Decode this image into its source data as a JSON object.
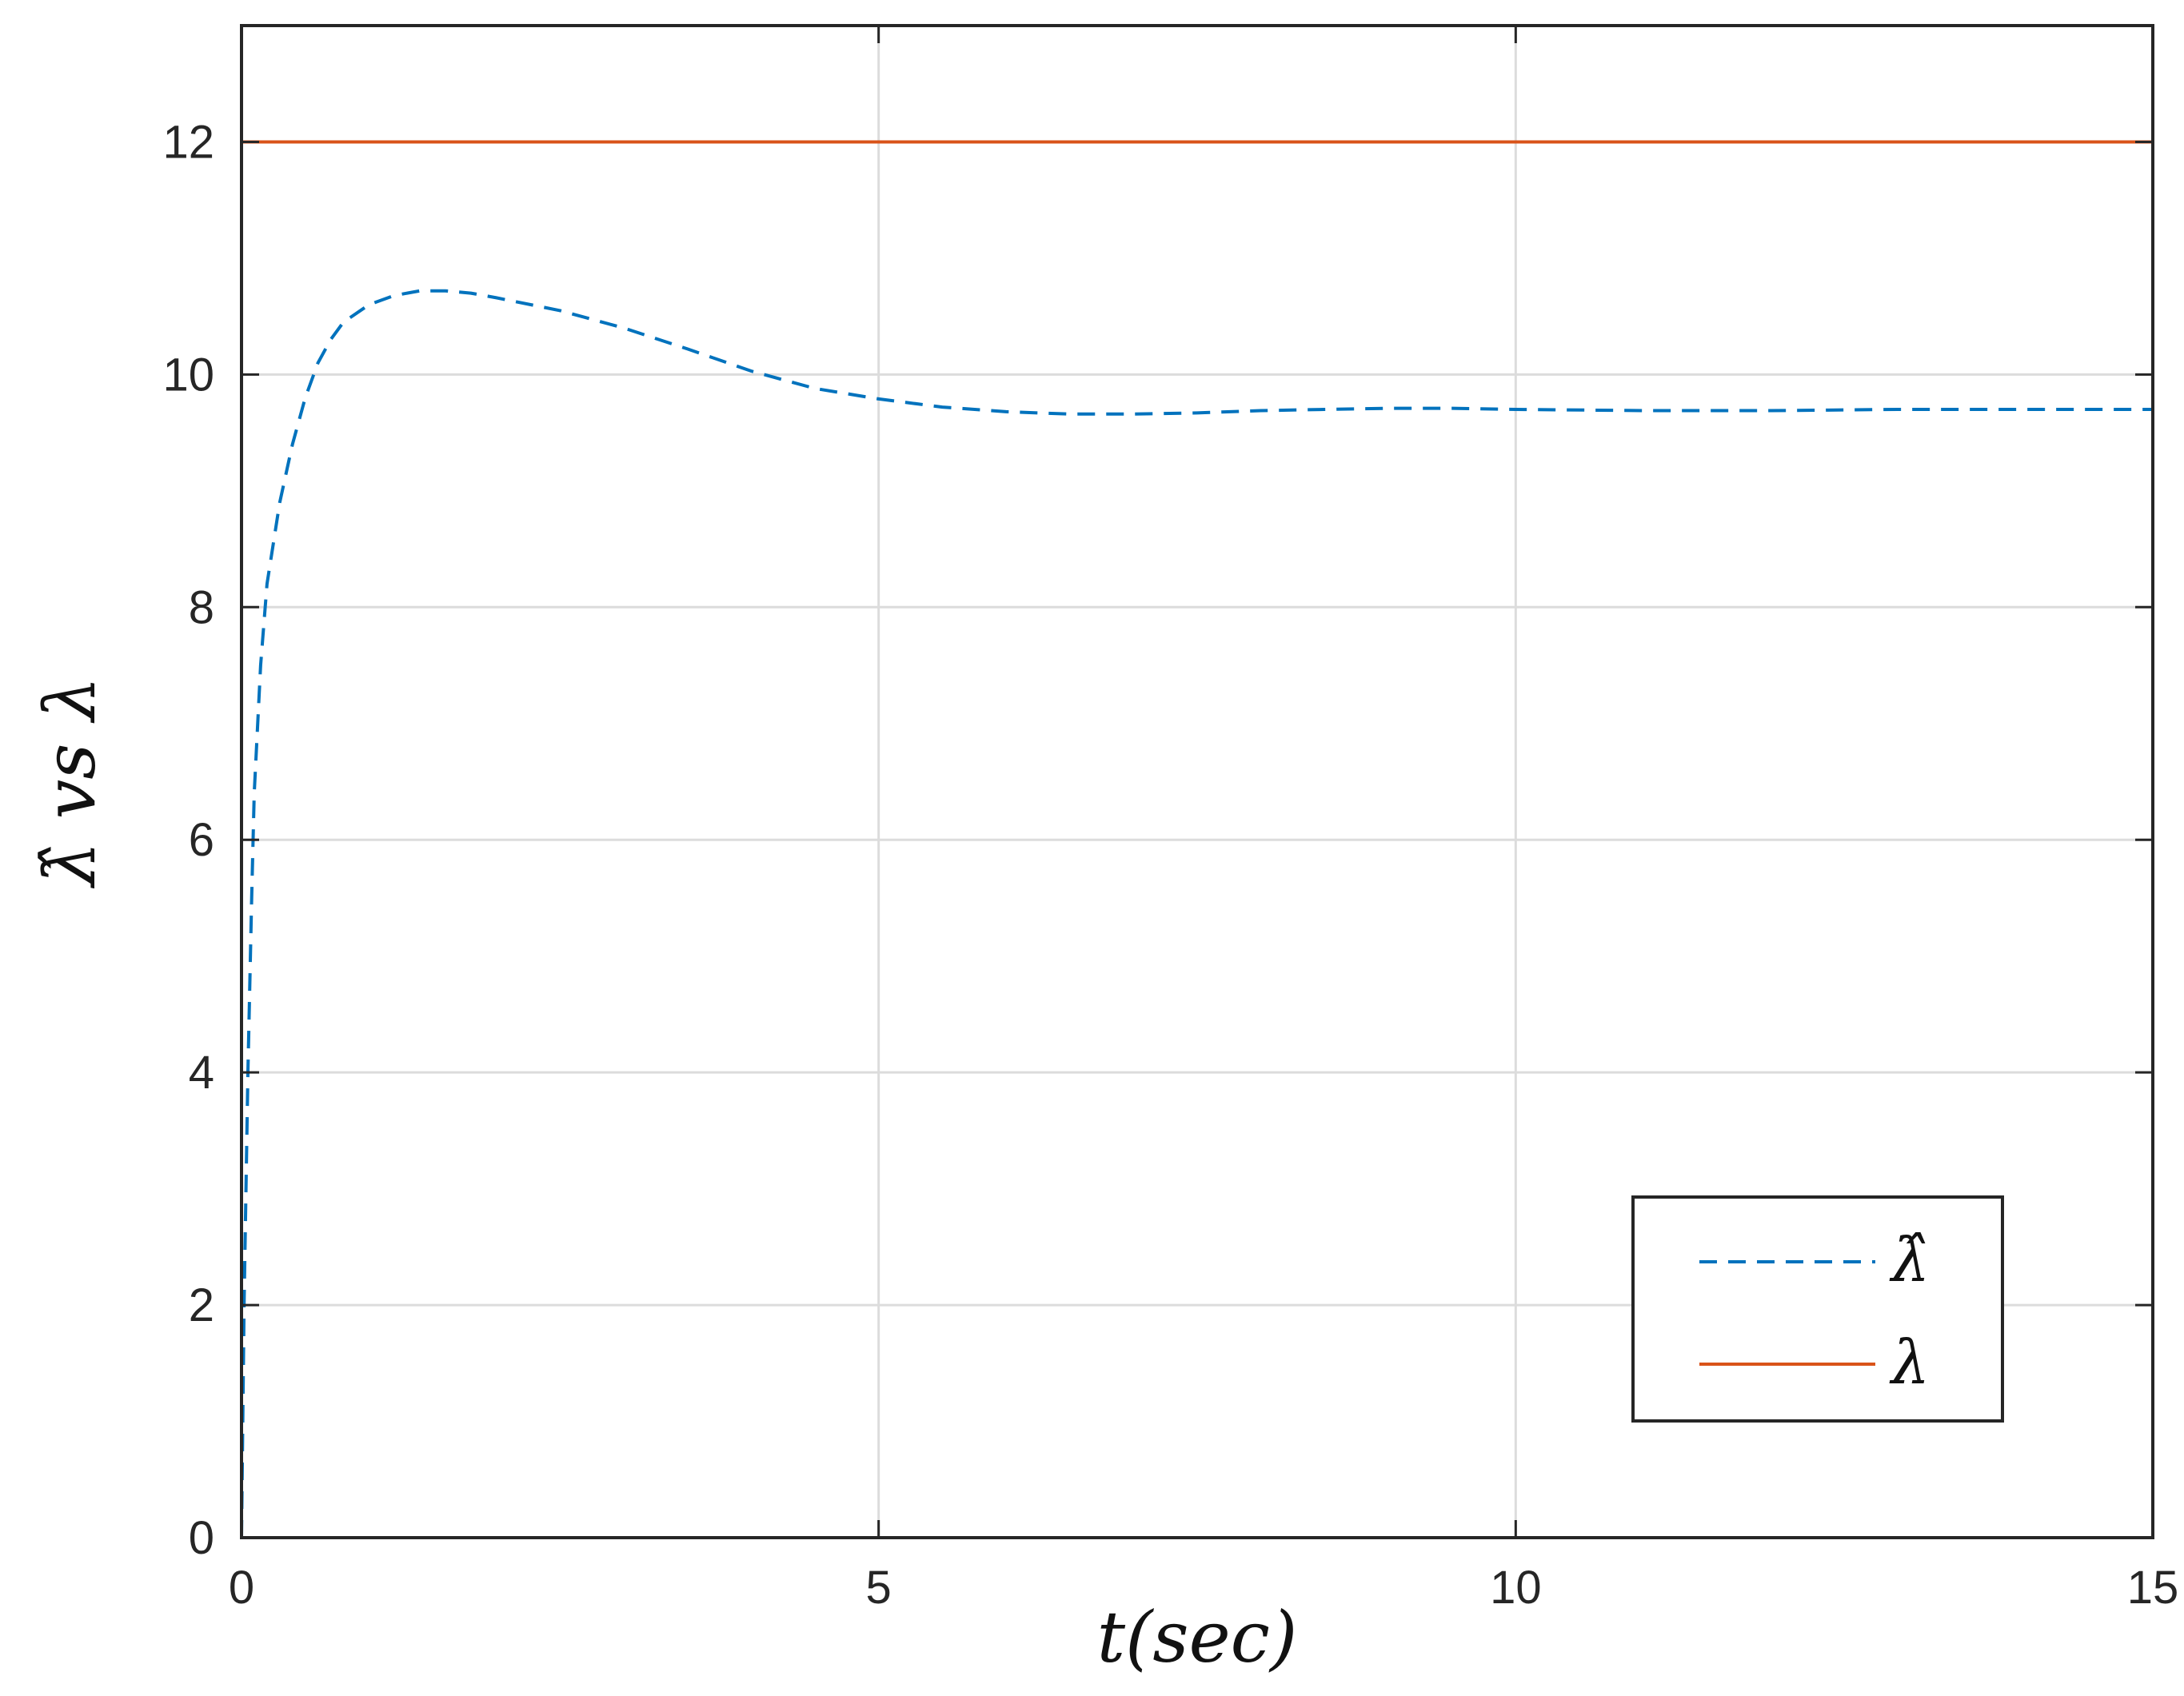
{
  "chart_data": {
    "type": "line",
    "title": "",
    "xlabel": "t(sec)",
    "ylabel": "λ̂ vs λ",
    "xlim": [
      0,
      15
    ],
    "ylim": [
      0,
      13
    ],
    "xticks": [
      0,
      5,
      10,
      15
    ],
    "yticks": [
      0,
      2,
      4,
      6,
      8,
      10,
      12
    ],
    "xtick_labels": [
      "0",
      "5",
      "10",
      "15"
    ],
    "ytick_labels": [
      "0",
      "2",
      "4",
      "6",
      "8",
      "10",
      "12"
    ],
    "grid": true,
    "legend_position": "bottom-right",
    "series": [
      {
        "name": "λ̂",
        "style": "dashed",
        "color": "#0072BD",
        "x": [
          0,
          0.02,
          0.05,
          0.08,
          0.1,
          0.15,
          0.2,
          0.3,
          0.4,
          0.5,
          0.6,
          0.7,
          0.8,
          1.0,
          1.2,
          1.4,
          1.6,
          1.8,
          2.0,
          2.5,
          3.0,
          3.5,
          4.0,
          4.5,
          5.0,
          5.5,
          6.0,
          6.5,
          7.0,
          7.5,
          8.0,
          8.5,
          9.0,
          9.5,
          10.0,
          11.0,
          12.0,
          13.0,
          14.0,
          15.0
        ],
        "y": [
          0,
          2.0,
          4.0,
          5.5,
          6.4,
          7.5,
          8.2,
          8.9,
          9.4,
          9.8,
          10.1,
          10.3,
          10.45,
          10.6,
          10.68,
          10.72,
          10.72,
          10.7,
          10.66,
          10.55,
          10.4,
          10.22,
          10.03,
          9.88,
          9.79,
          9.72,
          9.68,
          9.66,
          9.66,
          9.67,
          9.69,
          9.7,
          9.71,
          9.71,
          9.7,
          9.69,
          9.69,
          9.7,
          9.7,
          9.7
        ]
      },
      {
        "name": "λ",
        "style": "solid",
        "color": "#D95319",
        "x": [
          0,
          15
        ],
        "y": [
          12,
          12
        ]
      }
    ]
  }
}
